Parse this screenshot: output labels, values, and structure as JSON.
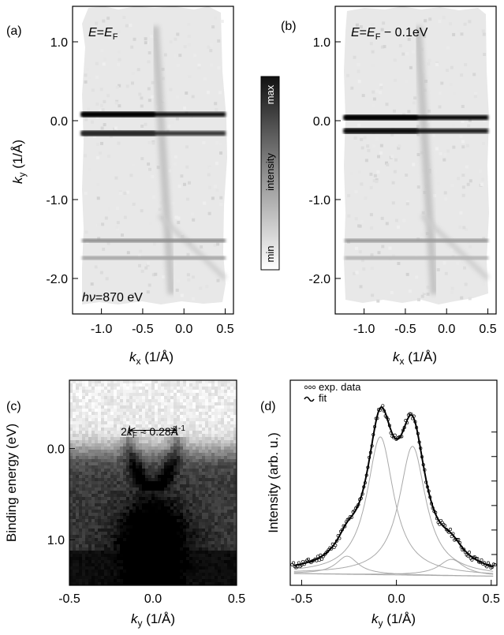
{
  "panels": {
    "a": {
      "label": "(a)",
      "annotation": {
        "italic": "E",
        "eq": "=",
        "sub_base": "E",
        "sub": "F",
        "suffix": ""
      },
      "photon": {
        "italic": "hν",
        "text": "=870 eV"
      }
    },
    "b": {
      "label": "(b)",
      "annotation": {
        "italic": "E",
        "eq": "=",
        "sub_base": "E",
        "sub": "F",
        "suffix": " − 0.1eV"
      }
    },
    "c": {
      "label": "(c)",
      "kf_note": {
        "prefix": "2",
        "k": "k",
        "sub": "F",
        "approx": " ≈ 0.28Å",
        "sup": "-1"
      }
    },
    "d": {
      "label": "(d)"
    }
  },
  "colorbar": {
    "max_label": "max",
    "mid_label": "intensity",
    "min_label": "min"
  },
  "axes": {
    "ky_label": {
      "k": "k",
      "sub": "y",
      "unit": " (1/Å)"
    },
    "kx_label": {
      "k": "k",
      "sub": "x",
      "unit": " (1/Å)"
    },
    "binding_label": "Binding energy (eV)",
    "intensity_label": "Intensity (arb. u.)"
  },
  "chart_data": [
    {
      "panel": "a",
      "type": "heatmap",
      "xlabel": "kx (1/Å)",
      "ylabel": "ky (1/Å)",
      "xticks": [
        "-1.0",
        "-0.5",
        "0.0",
        "0.5"
      ],
      "yticks": [
        "1.0",
        "0.0",
        "-1.0",
        "-2.0"
      ],
      "xlim": [
        -1.35,
        0.6
      ],
      "ylim": [
        -2.45,
        1.45
      ],
      "features": [
        {
          "ky": 0.08,
          "strength": 0.95
        },
        {
          "ky": -0.16,
          "strength": 0.8
        },
        {
          "ky": -1.52,
          "strength": 0.45
        },
        {
          "ky": -1.74,
          "strength": 0.35
        }
      ],
      "colormap": "white-to-black"
    },
    {
      "panel": "b",
      "type": "heatmap",
      "xlabel": "kx (1/Å)",
      "ylabel": "ky (1/Å)",
      "xticks": [
        "-1.0",
        "-0.5",
        "0.0",
        "0.5"
      ],
      "yticks": [
        "1.0",
        "0.0",
        "-1.0",
        "-2.0"
      ],
      "xlim": [
        -1.35,
        0.6
      ],
      "ylim": [
        -2.45,
        1.45
      ],
      "features": [
        {
          "ky": 0.04,
          "strength": 1.0
        },
        {
          "ky": -0.13,
          "strength": 0.9
        },
        {
          "ky": -1.52,
          "strength": 0.4
        },
        {
          "ky": -1.74,
          "strength": 0.3
        }
      ],
      "colormap": "white-to-black"
    },
    {
      "panel": "c",
      "type": "heatmap",
      "xlabel": "ky (1/Å)",
      "ylabel": "Binding energy (eV)",
      "xticks": [
        "-0.5",
        "0.0",
        "0.5"
      ],
      "yticks": [
        "0.0",
        "1.0"
      ],
      "xlim": [
        -0.5,
        0.5
      ],
      "ylim": [
        1.5,
        -0.75
      ],
      "kF_separation": 0.28,
      "colormap": "white-to-black"
    },
    {
      "panel": "d",
      "type": "line",
      "xlabel": "ky (1/Å)",
      "ylabel": "Intensity (arb. u.)",
      "xticks": [
        "-0.5",
        "0.0",
        "0.5"
      ],
      "xlim": [
        -0.56,
        0.53
      ],
      "legend": [
        "exp. data",
        "fit"
      ],
      "legend_position": "top-left",
      "background": 0.03,
      "components": [
        {
          "center": -0.085,
          "amp": 0.76,
          "width": 0.085
        },
        {
          "center": 0.085,
          "amp": 0.71,
          "width": 0.085
        },
        {
          "center": -0.26,
          "amp": 0.1,
          "width": 0.07
        },
        {
          "center": 0.29,
          "amp": 0.09,
          "width": 0.08
        }
      ]
    }
  ]
}
